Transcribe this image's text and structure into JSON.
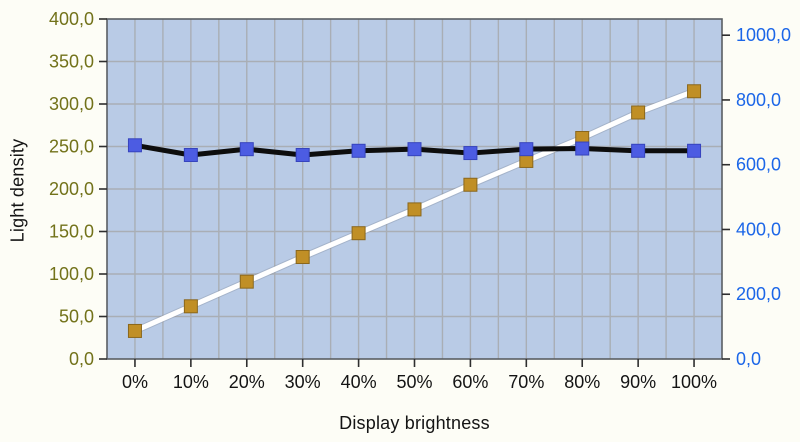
{
  "chart": {
    "xlabel": "Display brightness",
    "ylabel_left": "Light density"
  },
  "chart_data": {
    "type": "line",
    "title": "",
    "categories": [
      "0%",
      "10%",
      "20%",
      "30%",
      "40%",
      "50%",
      "60%",
      "70%",
      "80%",
      "90%",
      "100%"
    ],
    "series": [
      {
        "name": "light-density-white-line",
        "axis": "left",
        "line_color": "#ffffff",
        "marker_color": "#c08f26",
        "marker_edge": "#8a671c",
        "values": [
          33,
          62,
          91,
          120,
          148,
          176,
          205,
          233,
          260,
          290,
          315
        ]
      },
      {
        "name": "flat-black-line",
        "axis": "right",
        "line_color": "#0d0d0d",
        "marker_color": "#4c5ce2",
        "marker_edge": "#3644bd",
        "values": [
          660,
          630,
          648,
          630,
          643,
          648,
          636,
          648,
          650,
          643,
          643
        ]
      }
    ],
    "left_axis": {
      "ticks": [
        0,
        50,
        100,
        150,
        200,
        250,
        300,
        350,
        400
      ],
      "tick_labels": [
        "0,0",
        "50,0",
        "100,0",
        "150,0",
        "200,0",
        "250,0",
        "300,0",
        "350,0",
        "400,0"
      ],
      "ylim": [
        0,
        400
      ],
      "color": "#72721a"
    },
    "right_axis": {
      "ticks": [
        0,
        200,
        400,
        600,
        800,
        1000
      ],
      "tick_labels": [
        "0,0",
        "200,0",
        "400,0",
        "600,0",
        "800,0",
        "1000,0"
      ],
      "ylim": [
        0,
        1050
      ],
      "color": "#1b66e8"
    },
    "x_axis": {
      "tick_labels": [
        "0%",
        "10%",
        "20%",
        "30%",
        "40%",
        "50%",
        "60%",
        "70%",
        "80%",
        "90%",
        "100%"
      ],
      "color": "#141414"
    },
    "grid": {
      "horizontal": "major-every-50",
      "vertical_divisions_per_category": 2
    },
    "legend": "none"
  },
  "colors": {
    "page_bg": "#fdfdf6",
    "plot_bg": "#b9cbe6",
    "gridline": "#a9aeb5",
    "plot_border": "#5a5e63",
    "axis_tick": "#2e2e2e"
  }
}
